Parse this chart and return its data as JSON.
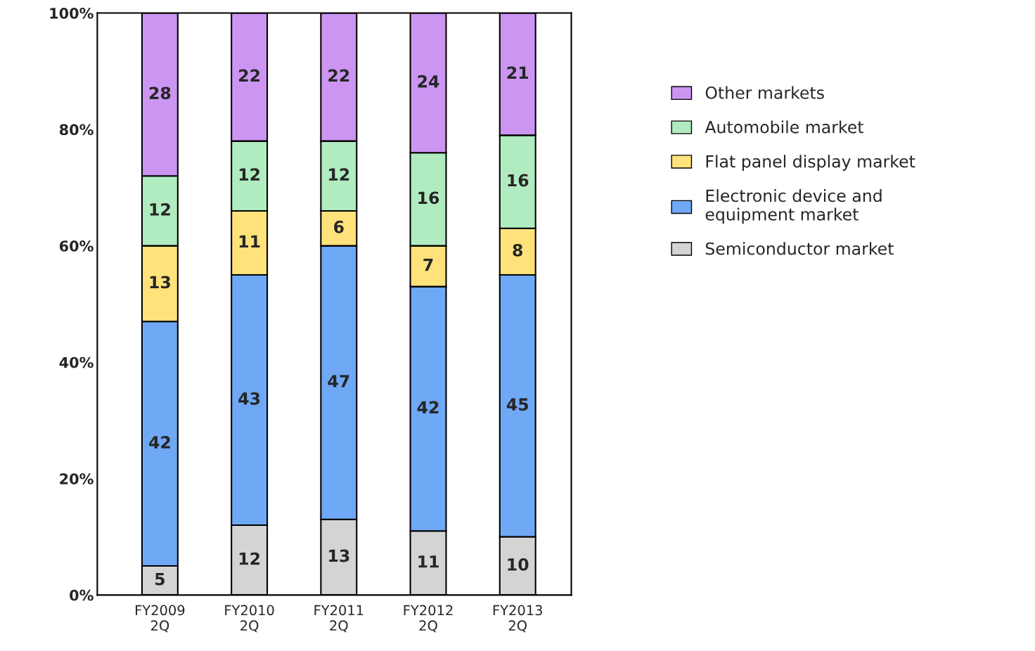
{
  "chart_data": {
    "type": "bar",
    "stacked": true,
    "categories": [
      "FY2009\n2Q",
      "FY2010\n2Q",
      "FY2011\n2Q",
      "FY2012\n2Q",
      "FY2013\n2Q"
    ],
    "series": [
      {
        "name": "Semiconductor market",
        "color": "#d4d4d4",
        "values": [
          5,
          12,
          13,
          11,
          10
        ]
      },
      {
        "name": "Electronic device and\nequipment market",
        "color": "#6fa8f5",
        "values": [
          42,
          43,
          47,
          42,
          45
        ]
      },
      {
        "name": "Flat panel display market",
        "color": "#ffe27a",
        "values": [
          13,
          11,
          6,
          7,
          8
        ]
      },
      {
        "name": "Automobile market",
        "color": "#b0ecc0",
        "values": [
          12,
          12,
          12,
          16,
          16
        ]
      },
      {
        "name": "Other markets",
        "color": "#cc95f2",
        "values": [
          28,
          22,
          22,
          24,
          21
        ]
      }
    ],
    "ylim": [
      0,
      100
    ],
    "yticks": [
      {
        "value": 0,
        "label": "0%"
      },
      {
        "value": 20,
        "label": "20%"
      },
      {
        "value": 40,
        "label": "40%"
      },
      {
        "value": 60,
        "label": "60%"
      },
      {
        "value": 80,
        "label": "80%"
      },
      {
        "value": 100,
        "label": "100%"
      }
    ],
    "data_labels": true,
    "legend": "right",
    "grid": false
  }
}
